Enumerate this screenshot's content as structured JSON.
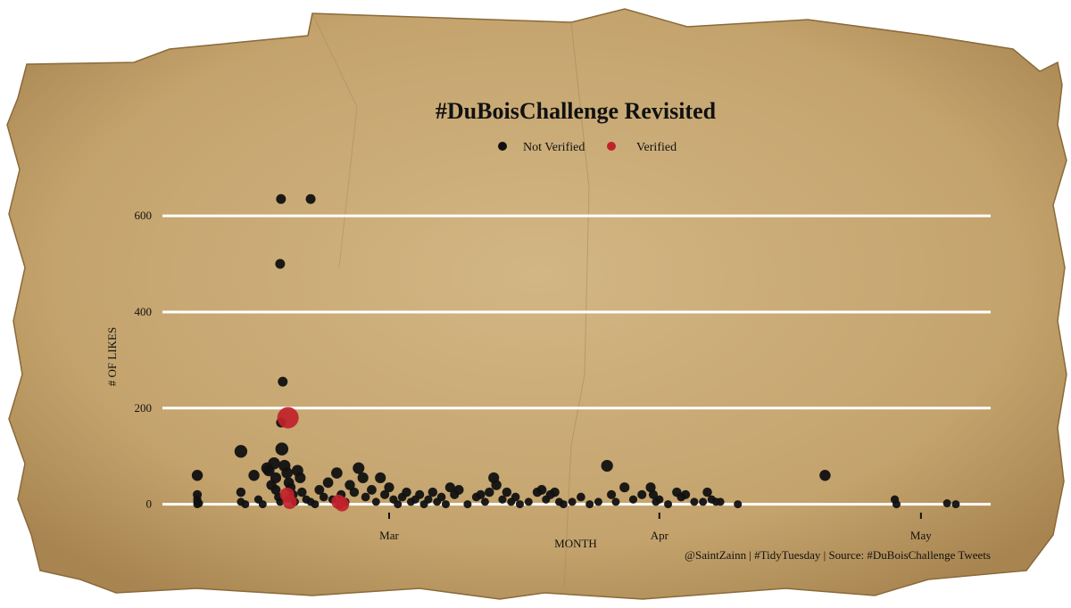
{
  "colors": {
    "paper": "#c9ab78",
    "paper_dark": "#a88550",
    "grid": "#ffffff",
    "not_verified": "#111111",
    "verified": "#c0222b",
    "text": "#111111"
  },
  "chart_data": {
    "type": "scatter",
    "title": "#DuBoisChallenge Revisited",
    "xlabel": "MONTH",
    "ylabel": "# OF LIKES",
    "caption": "@SaintZainn | #TidyTuesday | Source: #DuBoisChallenge Tweets",
    "x_unit": "day of year (2021)",
    "xlim": [
      34,
      129
    ],
    "ylim": [
      -10,
      680
    ],
    "y_ticks": [
      0,
      200,
      400,
      600
    ],
    "x_ticks": [
      {
        "label": "Mar",
        "value": 60
      },
      {
        "label": "Apr",
        "value": 91
      },
      {
        "label": "May",
        "value": 121
      }
    ],
    "grid": "horizontal",
    "legend_position": "top",
    "series": [
      {
        "name": "Not Verified",
        "points": [
          {
            "x": 38,
            "y": 60
          },
          {
            "x": 38,
            "y": 20
          },
          {
            "x": 38,
            "y": 10
          },
          {
            "x": 38,
            "y": 5
          },
          {
            "x": 38,
            "y": 0
          },
          {
            "x": 38.2,
            "y": 2
          },
          {
            "x": 43,
            "y": 110
          },
          {
            "x": 43,
            "y": 25
          },
          {
            "x": 43,
            "y": 5
          },
          {
            "x": 43.5,
            "y": 0
          },
          {
            "x": 44.5,
            "y": 60
          },
          {
            "x": 45,
            "y": 10
          },
          {
            "x": 45.5,
            "y": 0
          },
          {
            "x": 46,
            "y": 75
          },
          {
            "x": 46.2,
            "y": 70
          },
          {
            "x": 46.5,
            "y": 40
          },
          {
            "x": 46.8,
            "y": 85
          },
          {
            "x": 47,
            "y": 30
          },
          {
            "x": 47,
            "y": 55
          },
          {
            "x": 47.3,
            "y": 15
          },
          {
            "x": 47.5,
            "y": 5
          },
          {
            "x": 47.6,
            "y": 635
          },
          {
            "x": 47.5,
            "y": 500
          },
          {
            "x": 47.8,
            "y": 255
          },
          {
            "x": 47.6,
            "y": 170
          },
          {
            "x": 47.7,
            "y": 115
          },
          {
            "x": 48,
            "y": 80
          },
          {
            "x": 48.3,
            "y": 65
          },
          {
            "x": 48.5,
            "y": 45
          },
          {
            "x": 48.7,
            "y": 35
          },
          {
            "x": 49,
            "y": 20
          },
          {
            "x": 49.2,
            "y": 5
          },
          {
            "x": 49.5,
            "y": 70
          },
          {
            "x": 49.8,
            "y": 55
          },
          {
            "x": 50,
            "y": 25
          },
          {
            "x": 50.5,
            "y": 10
          },
          {
            "x": 51,
            "y": 5
          },
          {
            "x": 51.5,
            "y": 0
          },
          {
            "x": 51,
            "y": 635
          },
          {
            "x": 52,
            "y": 30
          },
          {
            "x": 52.5,
            "y": 15
          },
          {
            "x": 53,
            "y": 45
          },
          {
            "x": 53.5,
            "y": 10
          },
          {
            "x": 54,
            "y": 65
          },
          {
            "x": 54.5,
            "y": 20
          },
          {
            "x": 55,
            "y": 5
          },
          {
            "x": 55.5,
            "y": 40
          },
          {
            "x": 56,
            "y": 25
          },
          {
            "x": 56.5,
            "y": 75
          },
          {
            "x": 57,
            "y": 55
          },
          {
            "x": 57.3,
            "y": 15
          },
          {
            "x": 58,
            "y": 30
          },
          {
            "x": 58.5,
            "y": 5
          },
          {
            "x": 59,
            "y": 55
          },
          {
            "x": 59.5,
            "y": 20
          },
          {
            "x": 60,
            "y": 35
          },
          {
            "x": 60.5,
            "y": 10
          },
          {
            "x": 61,
            "y": 0
          },
          {
            "x": 61.5,
            "y": 15
          },
          {
            "x": 62,
            "y": 25
          },
          {
            "x": 62.5,
            "y": 5
          },
          {
            "x": 63,
            "y": 10
          },
          {
            "x": 63.5,
            "y": 20
          },
          {
            "x": 64,
            "y": 0
          },
          {
            "x": 64.5,
            "y": 10
          },
          {
            "x": 65,
            "y": 25
          },
          {
            "x": 65.5,
            "y": 5
          },
          {
            "x": 66,
            "y": 15
          },
          {
            "x": 66.5,
            "y": 0
          },
          {
            "x": 67,
            "y": 35
          },
          {
            "x": 67.5,
            "y": 20
          },
          {
            "x": 68,
            "y": 30
          },
          {
            "x": 69,
            "y": 0
          },
          {
            "x": 70,
            "y": 15
          },
          {
            "x": 70.5,
            "y": 20
          },
          {
            "x": 71,
            "y": 5
          },
          {
            "x": 71.5,
            "y": 25
          },
          {
            "x": 72,
            "y": 55
          },
          {
            "x": 72.3,
            "y": 40
          },
          {
            "x": 73,
            "y": 10
          },
          {
            "x": 73.5,
            "y": 25
          },
          {
            "x": 74,
            "y": 5
          },
          {
            "x": 74.5,
            "y": 15
          },
          {
            "x": 75,
            "y": 0
          },
          {
            "x": 76,
            "y": 5
          },
          {
            "x": 77,
            "y": 25
          },
          {
            "x": 77.5,
            "y": 30
          },
          {
            "x": 78,
            "y": 10
          },
          {
            "x": 78.5,
            "y": 20
          },
          {
            "x": 79,
            "y": 25
          },
          {
            "x": 79.5,
            "y": 5
          },
          {
            "x": 80,
            "y": 0
          },
          {
            "x": 81,
            "y": 5
          },
          {
            "x": 82,
            "y": 15
          },
          {
            "x": 83,
            "y": 0
          },
          {
            "x": 84,
            "y": 5
          },
          {
            "x": 85,
            "y": 80
          },
          {
            "x": 85.5,
            "y": 20
          },
          {
            "x": 86,
            "y": 5
          },
          {
            "x": 87,
            "y": 35
          },
          {
            "x": 88,
            "y": 10
          },
          {
            "x": 89,
            "y": 20
          },
          {
            "x": 90,
            "y": 35
          },
          {
            "x": 90.3,
            "y": 20
          },
          {
            "x": 90.6,
            "y": 5
          },
          {
            "x": 91,
            "y": 10
          },
          {
            "x": 92,
            "y": 0
          },
          {
            "x": 93,
            "y": 25
          },
          {
            "x": 93.5,
            "y": 15
          },
          {
            "x": 94,
            "y": 20
          },
          {
            "x": 95,
            "y": 5
          },
          {
            "x": 96,
            "y": 5
          },
          {
            "x": 96.5,
            "y": 25
          },
          {
            "x": 97,
            "y": 10
          },
          {
            "x": 97.5,
            "y": 5
          },
          {
            "x": 98,
            "y": 5
          },
          {
            "x": 100,
            "y": 0
          },
          {
            "x": 110,
            "y": 60
          },
          {
            "x": 118,
            "y": 10
          },
          {
            "x": 118.2,
            "y": 0
          },
          {
            "x": 124,
            "y": 2
          },
          {
            "x": 125,
            "y": 0
          }
        ]
      },
      {
        "name": "Verified",
        "points": [
          {
            "x": 48.4,
            "y": 180
          },
          {
            "x": 48.3,
            "y": 20
          },
          {
            "x": 48.6,
            "y": 5
          },
          {
            "x": 54.2,
            "y": 5
          },
          {
            "x": 54.6,
            "y": 0
          }
        ]
      }
    ]
  }
}
